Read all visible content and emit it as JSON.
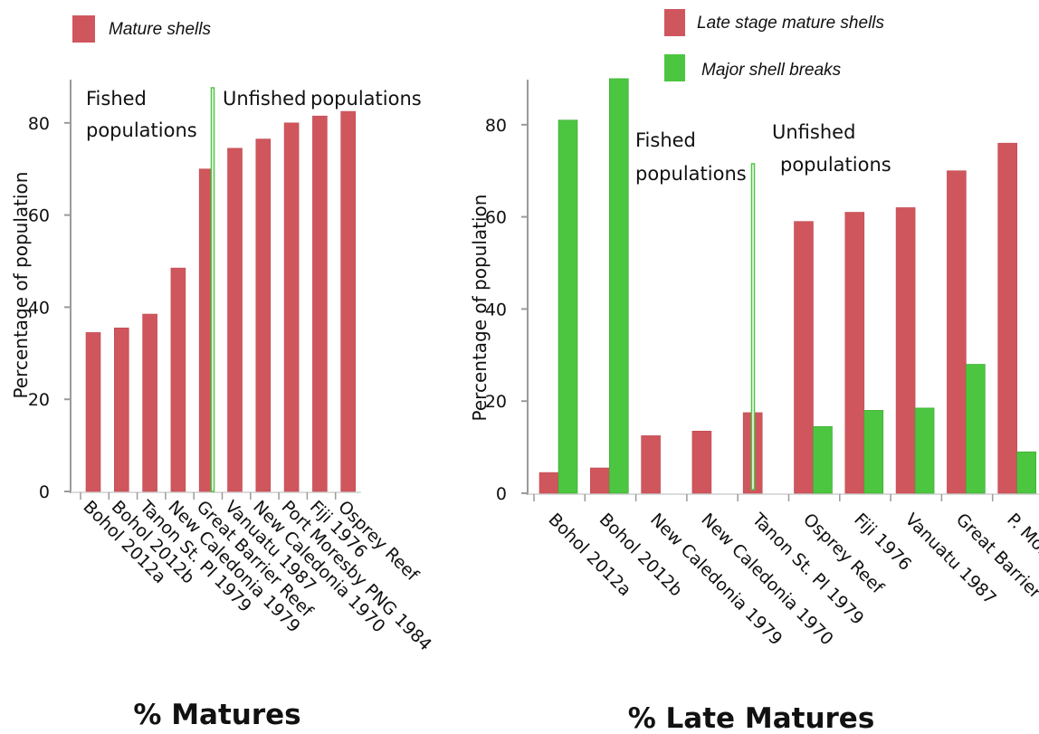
{
  "chart_data": [
    {
      "type": "bar",
      "title": "% Matures",
      "ylabel": "Percentage of population",
      "ylim": [
        0,
        90
      ],
      "yticks": [
        0,
        20,
        40,
        60,
        80
      ],
      "categories": [
        "Bohol 2012a",
        "Bohol 2012b",
        "Tanon St. Pl 1979",
        "New Caledonia 1979",
        "Great Barrier Reef",
        "Vanuatu 1987",
        "New Caledonia 1970",
        "Port Moresby PNG 1984",
        "Fiji 1976",
        "Osprey Reef"
      ],
      "series": [
        {
          "name": "Mature shells",
          "color": "#d0565e",
          "values": [
            34.5,
            35.5,
            38.5,
            48.5,
            70,
            74.5,
            76.5,
            80,
            81.5,
            82.5
          ]
        }
      ],
      "annotations": [
        "Fished populations",
        "Unfished",
        "populations"
      ],
      "legend_position": "top-left"
    },
    {
      "type": "bar",
      "title": "% Late Matures",
      "ylabel": "Percentage of population",
      "ylim": [
        0,
        90
      ],
      "yticks": [
        0,
        20,
        40,
        60,
        80
      ],
      "categories": [
        "Bohol 2012a",
        "Bohol 2012b",
        "New Caledonia 1979",
        "New Caledonia 1970",
        "Tanon St. Pl 1979",
        "Osprey Reef",
        "Fiji 1976",
        "Vanuatu 1987",
        "Great Barrier Reef",
        "P. Moresby"
      ],
      "series": [
        {
          "name": "Late stage mature shells",
          "color": "#d0565e",
          "values": [
            4.5,
            5.5,
            12.5,
            13.5,
            17.5,
            59,
            61,
            62,
            70,
            76
          ]
        },
        {
          "name": "Major shell breaks",
          "color": "#4cc640",
          "values": [
            81,
            90,
            0,
            0,
            0,
            14.5,
            18,
            18.5,
            28,
            9
          ]
        }
      ],
      "annotations": [
        "Fished populations",
        "Unfished populations"
      ],
      "legend_position": "top"
    }
  ]
}
